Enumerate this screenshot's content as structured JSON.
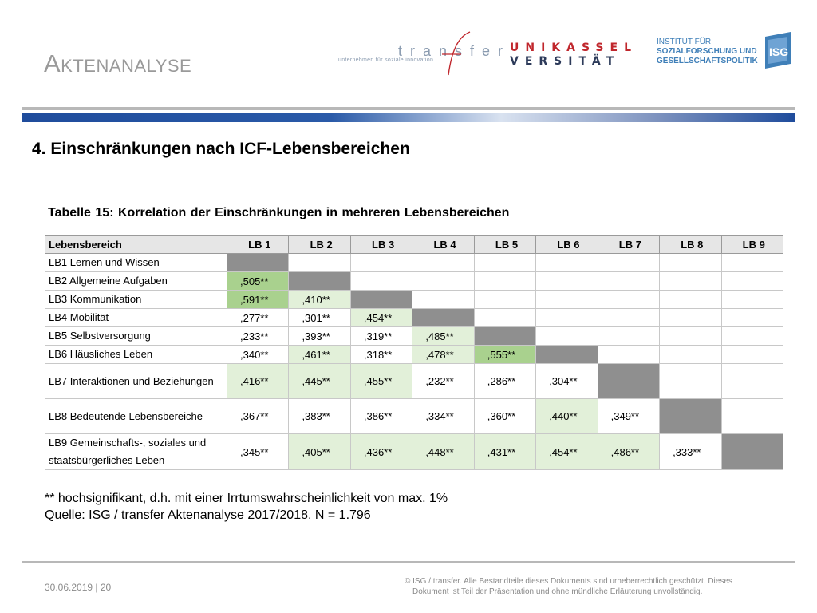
{
  "header": {
    "title": "Aktenanalyse",
    "logos": {
      "transfer_word": "transfer",
      "transfer_tagline": "unternehmen für soziale innovation",
      "uni_line1": "UNIKASSEL",
      "uni_line2": "VERSITÄT",
      "institute_line1": "INSTITUT FÜR",
      "institute_line2": "SOZIALFORSCHUNG UND",
      "institute_line3": "GESELLSCHAFTSPOLITIK",
      "isg_mark": "ISG"
    },
    "colors": {
      "uni_red": "#c0272d",
      "uni_navy": "#2d3b5a",
      "institute_blue": "#3f7fb8",
      "bar_blue": "#1f4c9c"
    }
  },
  "subtitle": "4. Einschränkungen nach ICF-Lebensbereichen",
  "table_caption": "Tabelle 15: Korrelation der Einschränkungen in mehreren Lebensbereichen",
  "table": {
    "header": [
      "Lebensbereich",
      "LB 1",
      "LB 2",
      "LB 3",
      "LB 4",
      "LB 5",
      "LB 6",
      "LB 7",
      "LB 8",
      "LB 9"
    ],
    "rows": [
      {
        "label": "LB1 Lernen und Wissen",
        "cells": [
          {
            "v": "",
            "c": "diag"
          },
          {
            "v": "",
            "c": "g0"
          },
          {
            "v": "",
            "c": "g0"
          },
          {
            "v": "",
            "c": "g0"
          },
          {
            "v": "",
            "c": "g0"
          },
          {
            "v": "",
            "c": "g0"
          },
          {
            "v": "",
            "c": "g0"
          },
          {
            "v": "",
            "c": "g0"
          },
          {
            "v": "",
            "c": "g0"
          }
        ]
      },
      {
        "label": "LB2 Allgemeine Aufgaben",
        "cells": [
          {
            "v": ",505**",
            "c": "g1"
          },
          {
            "v": "",
            "c": "diag"
          },
          {
            "v": "",
            "c": "g0"
          },
          {
            "v": "",
            "c": "g0"
          },
          {
            "v": "",
            "c": "g0"
          },
          {
            "v": "",
            "c": "g0"
          },
          {
            "v": "",
            "c": "g0"
          },
          {
            "v": "",
            "c": "g0"
          },
          {
            "v": "",
            "c": "g0"
          }
        ]
      },
      {
        "label": "LB3 Kommunikation",
        "cells": [
          {
            "v": ",591**",
            "c": "g1"
          },
          {
            "v": ",410**",
            "c": "g2"
          },
          {
            "v": "",
            "c": "diag"
          },
          {
            "v": "",
            "c": "g0"
          },
          {
            "v": "",
            "c": "g0"
          },
          {
            "v": "",
            "c": "g0"
          },
          {
            "v": "",
            "c": "g0"
          },
          {
            "v": "",
            "c": "g0"
          },
          {
            "v": "",
            "c": "g0"
          }
        ]
      },
      {
        "label": "LB4 Mobilität",
        "cells": [
          {
            "v": ",277**",
            "c": "g0"
          },
          {
            "v": ",301**",
            "c": "g0"
          },
          {
            "v": ",454**",
            "c": "g2"
          },
          {
            "v": "",
            "c": "diag"
          },
          {
            "v": "",
            "c": "g0"
          },
          {
            "v": "",
            "c": "g0"
          },
          {
            "v": "",
            "c": "g0"
          },
          {
            "v": "",
            "c": "g0"
          },
          {
            "v": "",
            "c": "g0"
          }
        ]
      },
      {
        "label": "LB5 Selbstversorgung",
        "cells": [
          {
            "v": ",233**",
            "c": "g0"
          },
          {
            "v": ",393**",
            "c": "g0"
          },
          {
            "v": ",319**",
            "c": "g0"
          },
          {
            "v": ",485**",
            "c": "g2"
          },
          {
            "v": "",
            "c": "diag"
          },
          {
            "v": "",
            "c": "g0"
          },
          {
            "v": "",
            "c": "g0"
          },
          {
            "v": "",
            "c": "g0"
          },
          {
            "v": "",
            "c": "g0"
          }
        ]
      },
      {
        "label": "LB6 Häusliches Leben",
        "cells": [
          {
            "v": ",340**",
            "c": "g0"
          },
          {
            "v": ",461**",
            "c": "g2"
          },
          {
            "v": ",318**",
            "c": "g0"
          },
          {
            "v": ",478**",
            "c": "g2"
          },
          {
            "v": ",555**",
            "c": "g1"
          },
          {
            "v": "",
            "c": "diag"
          },
          {
            "v": "",
            "c": "g0"
          },
          {
            "v": "",
            "c": "g0"
          },
          {
            "v": "",
            "c": "g0"
          }
        ]
      },
      {
        "label": "LB7 Interaktionen und Beziehungen",
        "tall": true,
        "cells": [
          {
            "v": ",416**",
            "c": "g2"
          },
          {
            "v": ",445**",
            "c": "g2"
          },
          {
            "v": ",455**",
            "c": "g2"
          },
          {
            "v": ",232**",
            "c": "g0"
          },
          {
            "v": ",286**",
            "c": "g0"
          },
          {
            "v": ",304**",
            "c": "g0"
          },
          {
            "v": "",
            "c": "diag"
          },
          {
            "v": "",
            "c": "g0"
          },
          {
            "v": "",
            "c": "g0"
          }
        ]
      },
      {
        "label": "LB8 Bedeutende Lebensbereiche",
        "tall": true,
        "cells": [
          {
            "v": ",367**",
            "c": "g0"
          },
          {
            "v": ",383**",
            "c": "g0"
          },
          {
            "v": ",386**",
            "c": "g0"
          },
          {
            "v": ",334**",
            "c": "g0"
          },
          {
            "v": ",360**",
            "c": "g0"
          },
          {
            "v": ",440**",
            "c": "g2"
          },
          {
            "v": ",349**",
            "c": "g0"
          },
          {
            "v": "",
            "c": "diag"
          },
          {
            "v": "",
            "c": "g0"
          }
        ]
      },
      {
        "label": "LB9 Gemeinschafts-, soziales und staatsbürgerliches Leben",
        "tall": true,
        "cells": [
          {
            "v": ",345**",
            "c": "g0"
          },
          {
            "v": ",405**",
            "c": "g2"
          },
          {
            "v": ",436**",
            "c": "g2"
          },
          {
            "v": ",448**",
            "c": "g2"
          },
          {
            "v": ",431**",
            "c": "g2"
          },
          {
            "v": ",454**",
            "c": "g2"
          },
          {
            "v": ",486**",
            "c": "g2"
          },
          {
            "v": ",333**",
            "c": "g0"
          },
          {
            "v": "",
            "c": "diag"
          }
        ]
      }
    ],
    "colors": {
      "diagonal": "#8f8f8f",
      "strong": "#a9d18e",
      "medium": "#e2f0d9"
    }
  },
  "note": {
    "significance": "** hochsignifikant, d.h. mit einer Irrtumswahrscheinlichkeit von max. 1%",
    "source": "Quelle: ISG / transfer Aktenanalyse 2017/2018, N = 1.796"
  },
  "footer": {
    "date_page": "30.06.2019 | 20",
    "copyright_line1": "© ISG / transfer. Alle Bestandteile dieses Dokuments sind urheberrechtlich geschützt. Dieses",
    "copyright_line2": "Dokument ist Teil der Präsentation und ohne mündliche Erläuterung unvollständig."
  }
}
